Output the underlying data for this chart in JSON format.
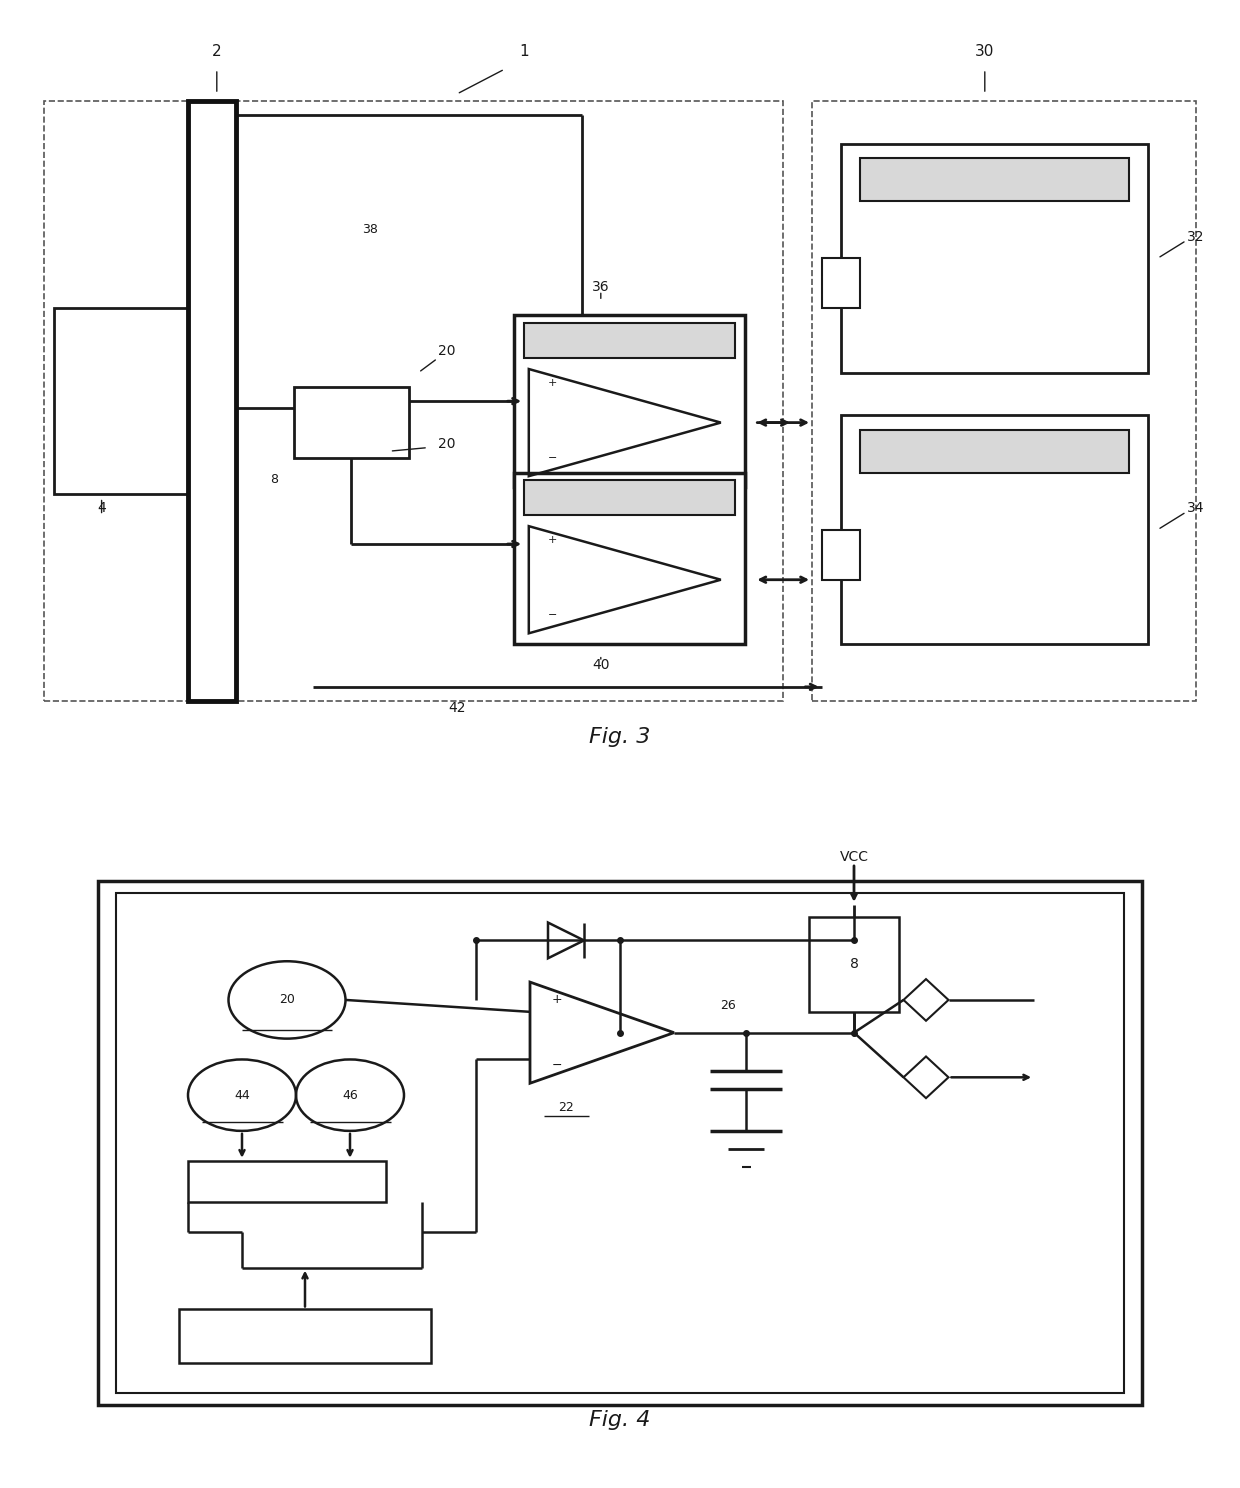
{
  "bg": "#ffffff",
  "lc": "#1a1a1a",
  "lc2": "#333333",
  "gray_fill": "#d8d8d8",
  "fig3_title": "Fig. 3",
  "fig4_title": "Fig. 4"
}
